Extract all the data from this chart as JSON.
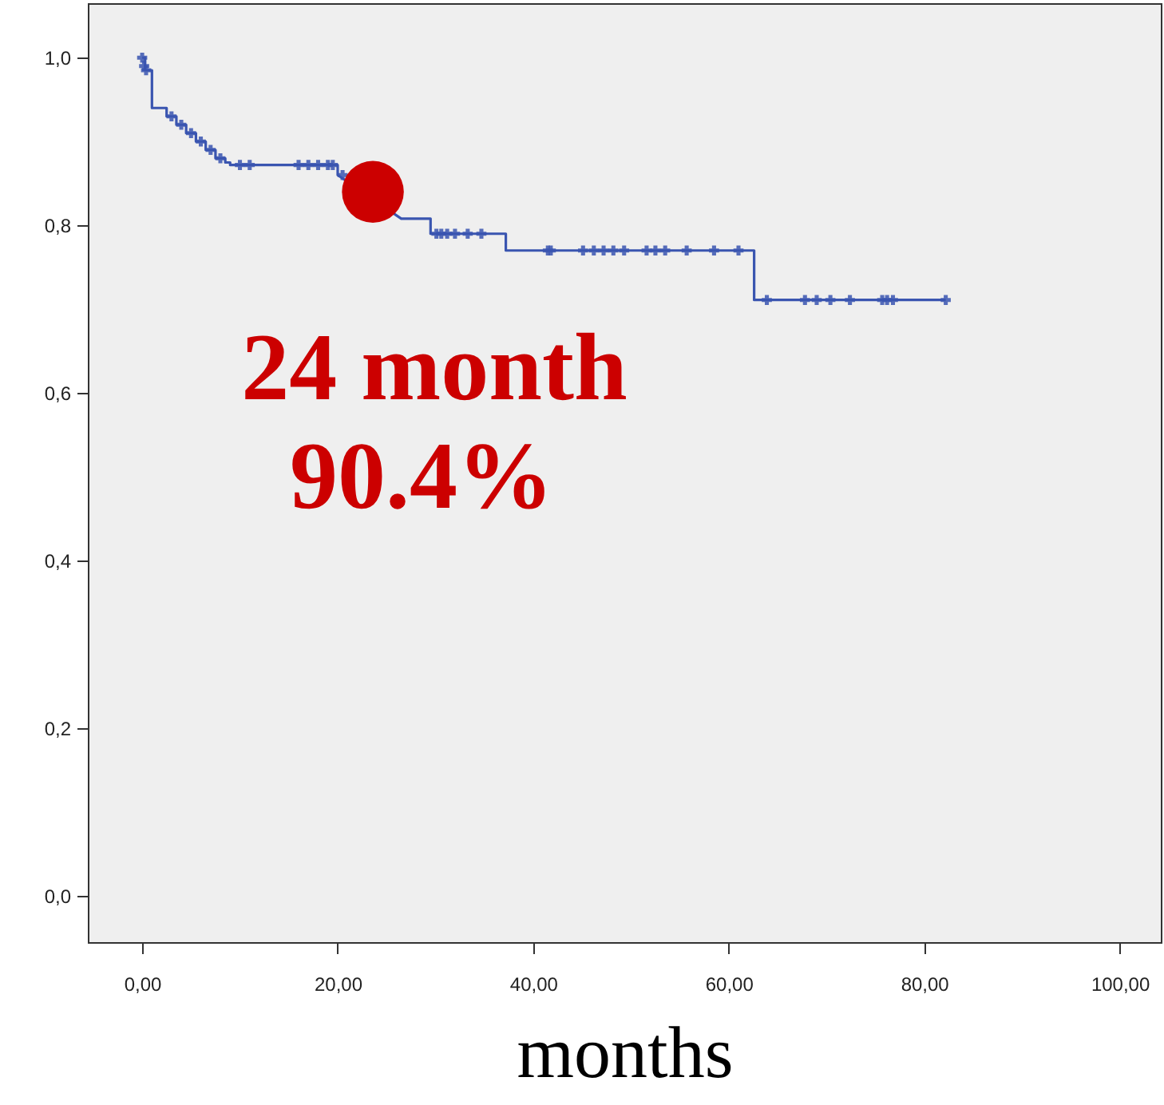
{
  "chart_data": {
    "type": "line",
    "xlabel": "months",
    "xlim": [
      -5.56,
      104.2
    ],
    "ylim": [
      -0.055,
      1.065
    ],
    "xticks": [
      {
        "value": 0,
        "label": "0,00"
      },
      {
        "value": 20,
        "label": "20,00"
      },
      {
        "value": 40,
        "label": "40,00"
      },
      {
        "value": 60,
        "label": "60,00"
      },
      {
        "value": 80,
        "label": "80,00"
      },
      {
        "value": 100,
        "label": "100,00"
      }
    ],
    "yticks": [
      {
        "value": 0,
        "label": "0,0"
      },
      {
        "value": 0.2,
        "label": "0,2"
      },
      {
        "value": 0.4,
        "label": "0,4"
      },
      {
        "value": 0.6,
        "label": "0,6"
      },
      {
        "value": 0.8,
        "label": "0,8"
      },
      {
        "value": 1,
        "label": "1,0"
      }
    ],
    "grid": false,
    "annotations": [
      "24 month",
      "90.4%"
    ],
    "series": [
      {
        "color": "#3a55b0",
        "marker": "none",
        "x": [
          0,
          0.3,
          0.3,
          1.0,
          1.0,
          2.5,
          2.5,
          3.5,
          3.5,
          4.5,
          4.5,
          5.5,
          5.5,
          6.5,
          6.5,
          7.5,
          7.5,
          8.5,
          8.5,
          9.0,
          9.0,
          20.0,
          20.0,
          26.5,
          29.5,
          29.5,
          37.2,
          37.2,
          62.6,
          62.6,
          82.2
        ],
        "values": [
          1.0,
          1.0,
          0.985,
          0.985,
          0.94,
          0.94,
          0.93,
          0.93,
          0.92,
          0.92,
          0.91,
          0.91,
          0.9,
          0.9,
          0.89,
          0.89,
          0.88,
          0.88,
          0.875,
          0.875,
          0.872,
          0.872,
          0.86,
          0.808,
          0.808,
          0.79,
          0.79,
          0.77,
          0.77,
          0.711,
          0.711
        ]
      },
      {
        "type": "scatter",
        "color": "#3a55b0",
        "marker": "cross",
        "x": [
          0,
          0.2,
          0.4,
          3,
          4,
          5,
          6,
          7,
          8,
          10,
          11,
          16,
          17,
          18,
          19,
          19.5,
          20.5,
          21,
          30.1,
          30.6,
          31.2,
          32,
          33.3,
          34.7,
          41.5,
          41.8,
          45.1,
          46.2,
          47.2,
          48.2,
          49.3,
          51.6,
          52.5,
          53.5,
          55.7,
          58.5,
          61,
          63.9,
          67.8,
          69,
          70.4,
          72.4,
          75.7,
          76.2,
          76.8,
          82.2
        ],
        "values": [
          1.0,
          0.99,
          0.985,
          0.93,
          0.92,
          0.91,
          0.9,
          0.89,
          0.88,
          0.872,
          0.872,
          0.872,
          0.872,
          0.872,
          0.872,
          0.872,
          0.86,
          null,
          0.79,
          0.79,
          0.79,
          0.79,
          0.79,
          0.79,
          0.77,
          0.77,
          0.77,
          0.77,
          0.77,
          0.77,
          0.77,
          0.77,
          0.77,
          0.77,
          0.77,
          0.77,
          0.77,
          0.711,
          0.711,
          0.711,
          0.711,
          0.711,
          0.711,
          0.711,
          0.711,
          0.711
        ]
      },
      {
        "type": "scatter",
        "color": "#cc0000",
        "marker": "circle",
        "x": [
          23.6
        ],
        "values": [
          0.84
        ]
      }
    ]
  }
}
